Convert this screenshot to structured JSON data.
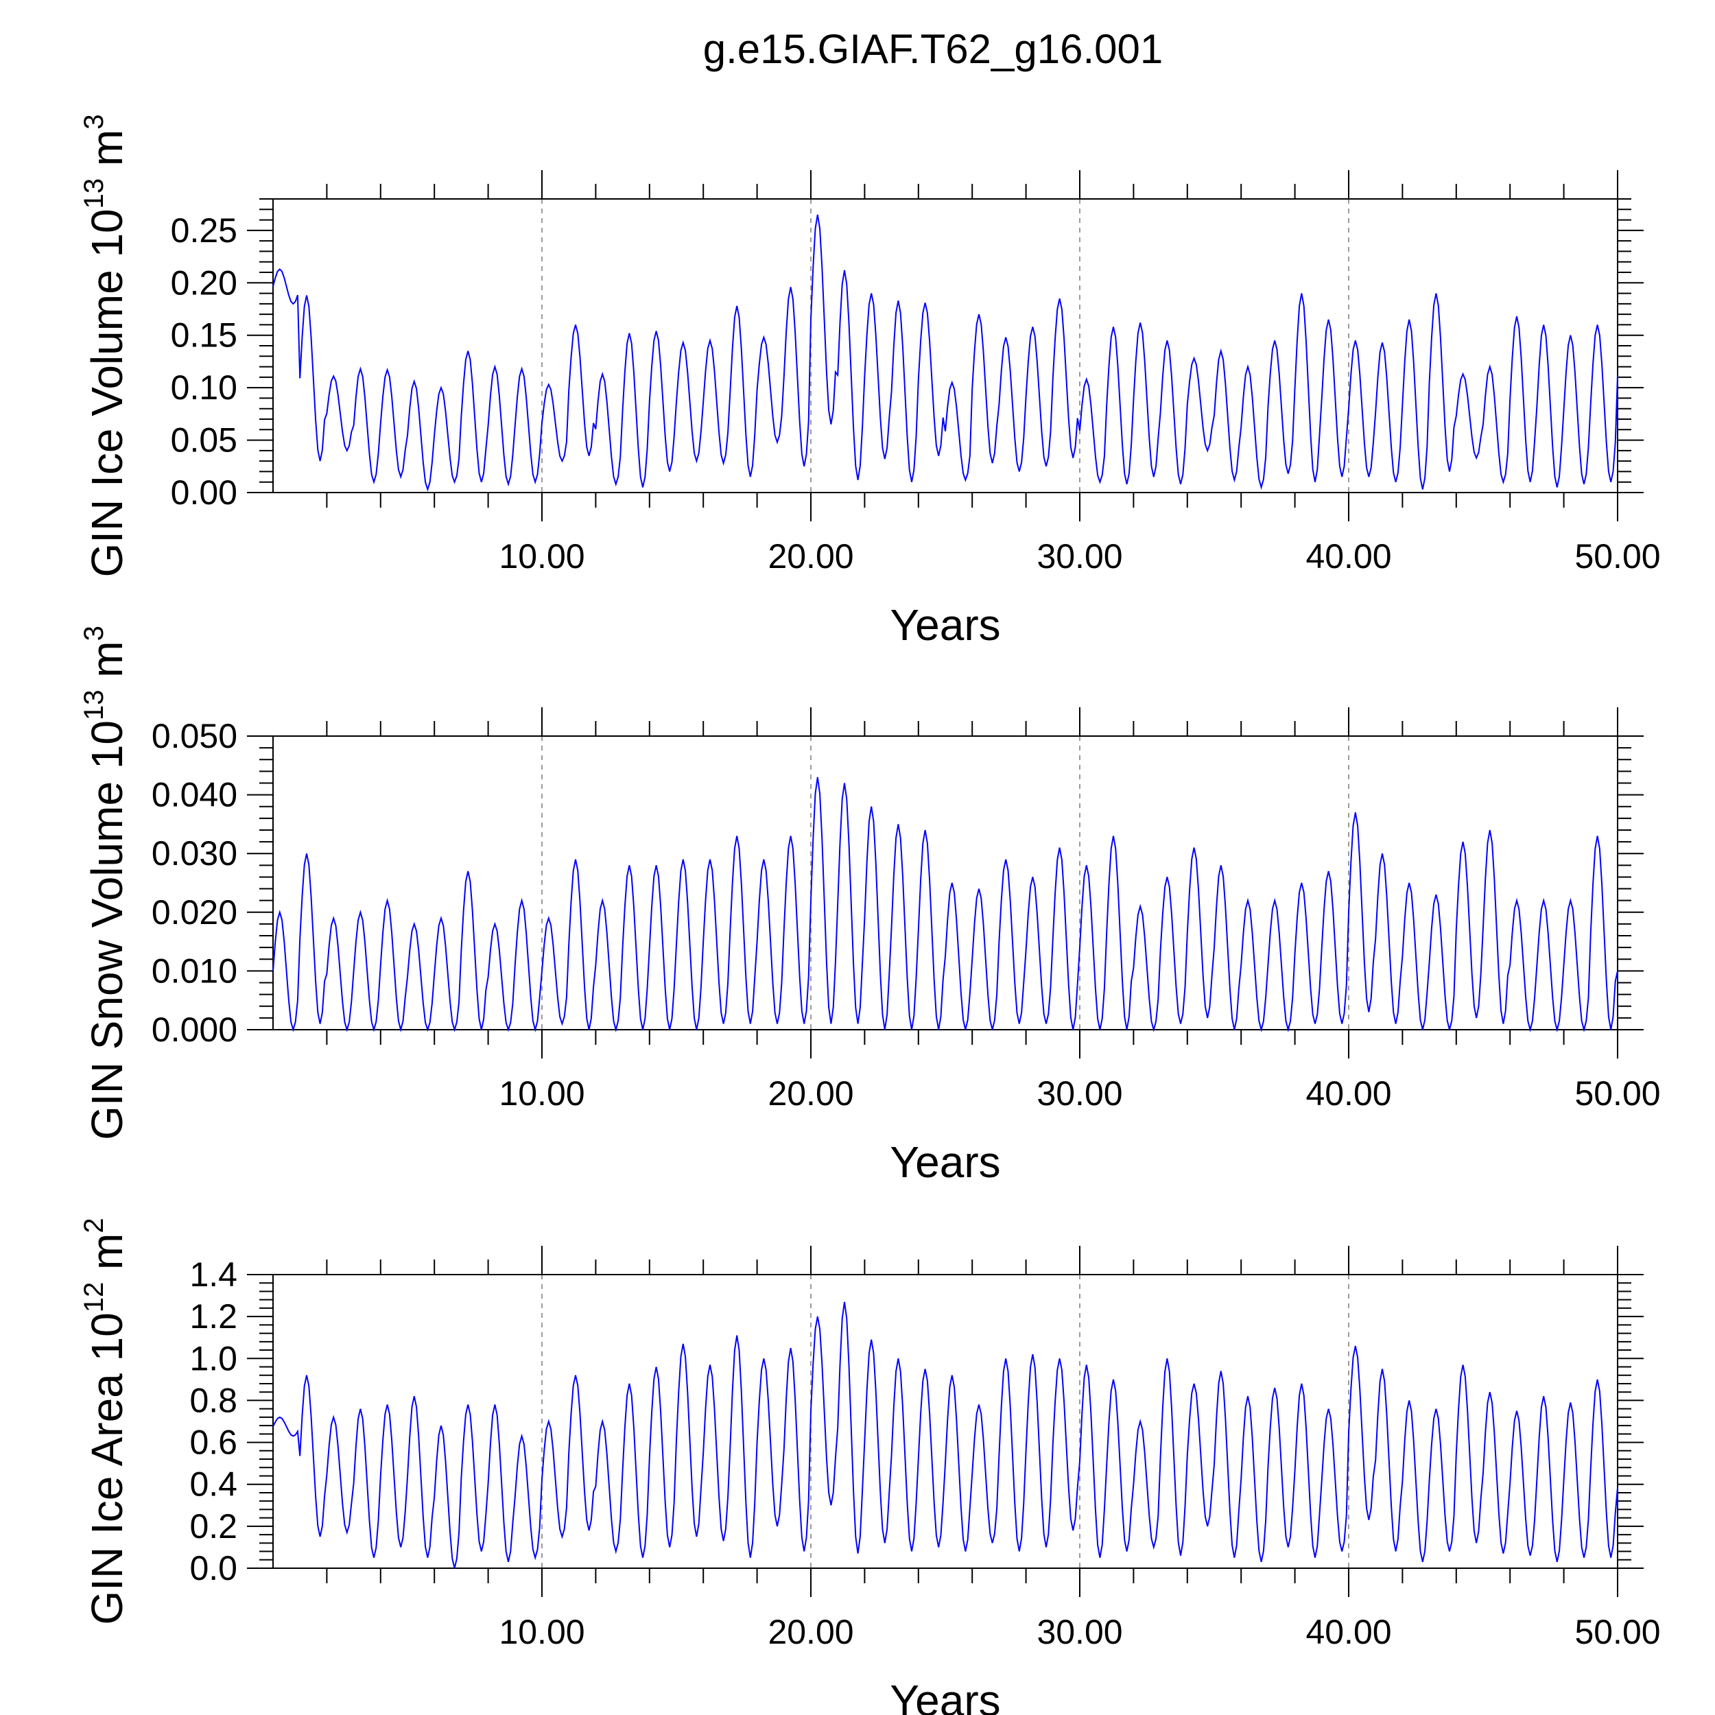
{
  "title": "g.e15.GIAF.T62_g16.001",
  "line_color": "#0000ff",
  "chart_data": [
    {
      "type": "line",
      "id": "ice-volume",
      "ylabel": {
        "text": "GIN Ice Volume 10",
        "exp": "13",
        "unit": " m",
        "unit_exp": "3"
      },
      "xlabel": "Years",
      "xlim": [
        0.0,
        50.0
      ],
      "ylim": [
        0.0,
        0.28
      ],
      "yticks": [
        "0.00",
        "0.05",
        "0.10",
        "0.15",
        "0.20",
        "0.25"
      ],
      "ytick_values": [
        0.0,
        0.05,
        0.1,
        0.15,
        0.2,
        0.25
      ],
      "xticks": [
        "10.00",
        "20.00",
        "30.00",
        "40.00",
        "50.00"
      ],
      "xtick_values": [
        10,
        20,
        30,
        40,
        50
      ],
      "grid": "vertical dashed at major x ticks",
      "series": [
        {
          "points_per_year": 12,
          "annual_max": [
            0.213,
            0.188,
            0.111,
            0.118,
            0.117,
            0.106,
            0.1,
            0.135,
            0.12,
            0.118,
            0.103,
            0.16,
            0.113,
            0.152,
            0.154,
            0.143,
            0.145,
            0.178,
            0.148,
            0.196,
            0.265,
            0.212,
            0.19,
            0.183,
            0.181,
            0.105,
            0.17,
            0.148,
            0.158,
            0.185,
            0.108,
            0.158,
            0.162,
            0.145,
            0.128,
            0.135,
            0.12,
            0.145,
            0.19,
            0.165,
            0.145,
            0.143,
            0.165,
            0.19,
            0.113,
            0.12,
            0.168,
            0.16,
            0.15,
            0.16
          ],
          "annual_min": [
            0.18,
            0.03,
            0.04,
            0.01,
            0.015,
            0.003,
            0.01,
            0.01,
            0.008,
            0.01,
            0.03,
            0.035,
            0.008,
            0.005,
            0.02,
            0.03,
            0.028,
            0.015,
            0.048,
            0.025,
            0.065,
            0.012,
            0.032,
            0.01,
            0.035,
            0.012,
            0.028,
            0.02,
            0.025,
            0.033,
            0.01,
            0.008,
            0.015,
            0.008,
            0.04,
            0.012,
            0.005,
            0.018,
            0.01,
            0.015,
            0.015,
            0.01,
            0.003,
            0.02,
            0.033,
            0.01,
            0.01,
            0.005,
            0.008,
            0.01
          ]
        }
      ]
    },
    {
      "type": "line",
      "id": "snow-volume",
      "ylabel": {
        "text": "GIN Snow Volume 10",
        "exp": "13",
        "unit": " m",
        "unit_exp": "3"
      },
      "xlabel": "Years",
      "xlim": [
        0.0,
        50.0
      ],
      "ylim": [
        0.0,
        0.05
      ],
      "yticks": [
        "0.000",
        "0.010",
        "0.020",
        "0.030",
        "0.040",
        "0.050"
      ],
      "ytick_values": [
        0.0,
        0.01,
        0.02,
        0.03,
        0.04,
        0.05
      ],
      "xticks": [
        "10.00",
        "20.00",
        "30.00",
        "40.00",
        "50.00"
      ],
      "xtick_values": [
        10,
        20,
        30,
        40,
        50
      ],
      "grid": "vertical dashed at major x ticks",
      "series": [
        {
          "points_per_year": 12,
          "annual_max": [
            0.02,
            0.03,
            0.019,
            0.02,
            0.022,
            0.018,
            0.019,
            0.027,
            0.018,
            0.022,
            0.019,
            0.029,
            0.022,
            0.028,
            0.028,
            0.029,
            0.029,
            0.033,
            0.029,
            0.033,
            0.043,
            0.042,
            0.038,
            0.035,
            0.034,
            0.025,
            0.024,
            0.029,
            0.026,
            0.031,
            0.028,
            0.033,
            0.021,
            0.026,
            0.031,
            0.028,
            0.022,
            0.022,
            0.025,
            0.027,
            0.037,
            0.03,
            0.025,
            0.023,
            0.032,
            0.034,
            0.022,
            0.022,
            0.022,
            0.033
          ],
          "annual_min": [
            0.0,
            0.001,
            0.0,
            0.0,
            0.0,
            0.0,
            0.0,
            0.0,
            0.0,
            0.0,
            0.001,
            0.0,
            0.0,
            0.0,
            0.0,
            0.0,
            0.001,
            0.001,
            0.001,
            0.001,
            0.001,
            0.001,
            0.0,
            0.0,
            0.0,
            0.0,
            0.0,
            0.001,
            0.001,
            0.0,
            0.0,
            0.0,
            0.0,
            0.001,
            0.002,
            0.0,
            0.0,
            0.0,
            0.001,
            0.001,
            0.003,
            0.001,
            0.0,
            0.0,
            0.002,
            0.001,
            0.0,
            0.0,
            0.0,
            0.0
          ]
        }
      ]
    },
    {
      "type": "line",
      "id": "ice-area",
      "ylabel": {
        "text": "GIN Ice Area 10",
        "exp": "12",
        "unit": " m",
        "unit_exp": "2"
      },
      "xlabel": "Years",
      "xlim": [
        0.0,
        50.0
      ],
      "ylim": [
        0.0,
        1.4
      ],
      "yticks": [
        "0.0",
        "0.2",
        "0.4",
        "0.6",
        "0.8",
        "1.0",
        "1.2",
        "1.4"
      ],
      "ytick_values": [
        0.0,
        0.2,
        0.4,
        0.6,
        0.8,
        1.0,
        1.2,
        1.4
      ],
      "xticks": [
        "10.00",
        "20.00",
        "30.00",
        "40.00",
        "50.00"
      ],
      "xtick_values": [
        10,
        20,
        30,
        40,
        50
      ],
      "grid": "vertical dashed at major x ticks",
      "series": [
        {
          "points_per_year": 12,
          "annual_max": [
            0.72,
            0.92,
            0.72,
            0.76,
            0.78,
            0.82,
            0.68,
            0.78,
            0.78,
            0.63,
            0.7,
            0.92,
            0.7,
            0.88,
            0.96,
            1.07,
            0.97,
            1.11,
            1.0,
            1.05,
            1.2,
            1.27,
            1.09,
            1.0,
            0.95,
            0.92,
            0.78,
            1.0,
            1.02,
            1.0,
            0.97,
            0.9,
            0.7,
            1.0,
            0.88,
            0.94,
            0.82,
            0.86,
            0.88,
            0.76,
            1.06,
            0.95,
            0.8,
            0.76,
            0.97,
            0.84,
            0.75,
            0.82,
            0.79,
            0.9
          ],
          "annual_min": [
            0.63,
            0.15,
            0.17,
            0.05,
            0.1,
            0.05,
            0.0,
            0.08,
            0.03,
            0.05,
            0.15,
            0.18,
            0.08,
            0.05,
            0.1,
            0.15,
            0.13,
            0.05,
            0.2,
            0.08,
            0.3,
            0.07,
            0.12,
            0.08,
            0.1,
            0.08,
            0.12,
            0.08,
            0.1,
            0.18,
            0.05,
            0.08,
            0.1,
            0.06,
            0.2,
            0.05,
            0.03,
            0.1,
            0.05,
            0.08,
            0.23,
            0.08,
            0.03,
            0.08,
            0.12,
            0.07,
            0.06,
            0.03,
            0.05,
            0.05
          ]
        }
      ]
    }
  ]
}
